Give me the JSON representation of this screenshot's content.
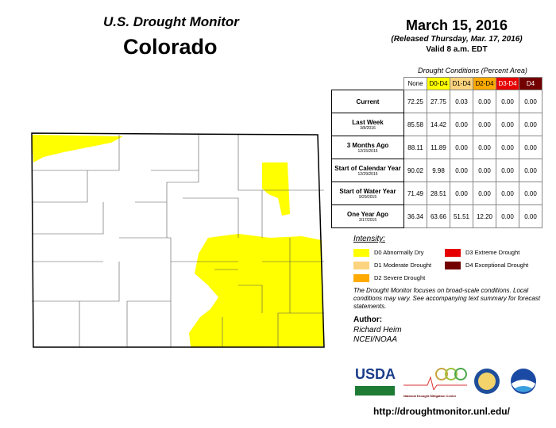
{
  "header": {
    "title": "U.S. Drought Monitor",
    "state": "Colorado",
    "date": "March 15, 2016",
    "released": "(Released Thursday, Mar. 17, 2016)",
    "valid": "Valid 8 a.m. EDT"
  },
  "table": {
    "caption": "Drought Conditions (Percent Area)",
    "columns": [
      {
        "label": "None",
        "color": "#ffffff"
      },
      {
        "label": "D0-D4",
        "color": "#ffff00"
      },
      {
        "label": "D1-D4",
        "color": "#fcd37f"
      },
      {
        "label": "D2-D4",
        "color": "#ffaa00"
      },
      {
        "label": "D3-D4",
        "color": "#e60000"
      },
      {
        "label": "D4",
        "color": "#730000"
      }
    ],
    "rows": [
      {
        "label": "Current",
        "sub": "",
        "values": [
          "72.25",
          "27.75",
          "0.03",
          "0.00",
          "0.00",
          "0.00"
        ]
      },
      {
        "label": "Last Week",
        "sub": "3/8/2016",
        "values": [
          "85.58",
          "14.42",
          "0.00",
          "0.00",
          "0.00",
          "0.00"
        ]
      },
      {
        "label": "3 Months Ago",
        "sub": "12/15/2015",
        "values": [
          "88.11",
          "11.89",
          "0.00",
          "0.00",
          "0.00",
          "0.00"
        ]
      },
      {
        "label": "Start of Calendar Year",
        "sub": "12/29/2015",
        "values": [
          "90.02",
          "9.98",
          "0.00",
          "0.00",
          "0.00",
          "0.00"
        ]
      },
      {
        "label": "Start of Water Year",
        "sub": "9/29/2015",
        "values": [
          "71.49",
          "28.51",
          "0.00",
          "0.00",
          "0.00",
          "0.00"
        ]
      },
      {
        "label": "One Year Ago",
        "sub": "3/17/2015",
        "values": [
          "36.34",
          "63.66",
          "51.51",
          "12.20",
          "0.00",
          "0.00"
        ]
      }
    ]
  },
  "legend": {
    "title": "Intensity:",
    "items": [
      {
        "label": "D0 Abnormally Dry",
        "color": "#ffff00"
      },
      {
        "label": "D1 Moderate Drought",
        "color": "#fcd37f"
      },
      {
        "label": "D2 Severe Drought",
        "color": "#ffaa00"
      },
      {
        "label": "D3 Extreme Drought",
        "color": "#e60000"
      },
      {
        "label": "D4 Exceptional Drought",
        "color": "#730000"
      }
    ]
  },
  "note": "The Drought Monitor focuses on broad-scale conditions. Local conditions may vary. See accompanying text summary for forecast statements.",
  "author": {
    "heading": "Author:",
    "name": "Richard Heim",
    "org": "NCEI/NOAA"
  },
  "logos": {
    "usda": "USDA",
    "ndmc": "National Drought Mitigation Center"
  },
  "url": "http://droughtmonitor.unl.edu/"
}
